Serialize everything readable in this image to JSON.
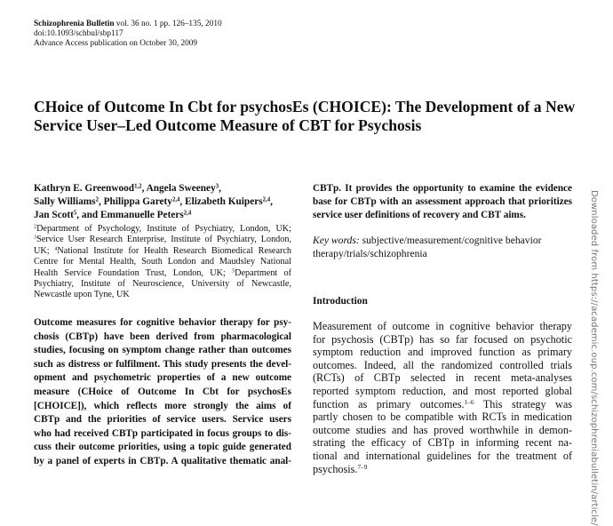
{
  "header": {
    "journal": "Schizophrenia Bulletin",
    "volume_info": " vol. 36 no. 1 pp. 126–135, 2010",
    "doi": "doi:10.1093/schbul/sbp117",
    "advance_access": "Advance Access publication on October 30, 2009"
  },
  "title": {
    "line1": "CHoice of Outcome In Cbt for psychosEs (CHOICE): The Development of a New",
    "line2": "Service User–Led Outcome Measure of CBT for Psychosis"
  },
  "authors": [
    [
      {
        "t": "Kathryn E. Greenwood"
      },
      {
        "s": "1,2"
      },
      {
        "t": ", Angela Sweeney"
      },
      {
        "s": "3"
      },
      {
        "t": ","
      }
    ],
    [
      {
        "t": "Sally Williams"
      },
      {
        "s": "2"
      },
      {
        "t": ", Philippa Garety"
      },
      {
        "s": "2,4"
      },
      {
        "t": ", Elizabeth Kuipers"
      },
      {
        "s": "2,4"
      },
      {
        "t": ","
      }
    ],
    [
      {
        "t": "Jan Scott"
      },
      {
        "s": "5"
      },
      {
        "t": ", and Emmanuelle Peters"
      },
      {
        "s": "2,4"
      }
    ]
  ],
  "affiliations": [
    [
      {
        "s": "2"
      },
      {
        "t": "Department of Psychology, Institute of Psychiatry, London, UK;"
      }
    ],
    [
      {
        "s": "3"
      },
      {
        "t": "Service User Research Enterprise, Institute of Psychiatry, London,"
      }
    ],
    [
      {
        "t": "UK; "
      },
      {
        "s": "4"
      },
      {
        "t": "National Institute for Health Research Biomedical Research"
      }
    ],
    [
      {
        "t": "Centre for Mental Health, South London and Maudsley National"
      }
    ],
    [
      {
        "t": "Health Service Foundation Trust, London, UK; "
      },
      {
        "s": "5"
      },
      {
        "t": "Department of"
      }
    ],
    [
      {
        "t": "Psychiatry, Institute of Neuroscience, University of Newcastle,"
      }
    ],
    [
      {
        "t": "Newcastle upon Tyne, UK"
      }
    ]
  ],
  "abstract_lines": [
    "Outcome measures for cognitive behavior therapy for psy-",
    "chosis (CBTp) have been derived from pharmacological",
    "studies, focusing on symptom change rather than outcomes",
    "such as distress or fulfilment. This study presents the devel-",
    "opment and psychometric properties of a new outcome",
    "measure (CHoice of Outcome In Cbt for psychosEs",
    "[CHOICE]), which reflects more strongly the aims of",
    "CBTp and the priorities of service users. Service users",
    "who had received CBTp participated in focus groups to dis-",
    "cuss their outcome priorities, using a topic guide generated",
    "by a panel of experts in CBTp. A qualitative thematic anal-"
  ],
  "abstract_cont_lines": [
    "CBTp. It provides the opportunity to examine the evidence",
    "base for CBTp with an assessment approach that prioritizes",
    "service user definitions of recovery and CBT aims."
  ],
  "keywords": {
    "label": "Key words:",
    "line1": " subjective/measurement/cognitive behavior",
    "line2": "therapy/trials/schizophrenia"
  },
  "introduction": {
    "heading": "Introduction",
    "lines": [
      [
        {
          "t": "Measurement of outcome in cognitive behavior therapy"
        }
      ],
      [
        {
          "t": "for psychosis (CBTp) has so far focused on psychotic"
        }
      ],
      [
        {
          "t": "symptom reduction and improved function as primary"
        }
      ],
      [
        {
          "t": "outcomes. Indeed, all the randomized controlled trials"
        }
      ],
      [
        {
          "t": "(RCTs) of CBTp selected in recent meta-analyses"
        }
      ],
      [
        {
          "t": "reported symptom reduction, and most reported global"
        }
      ],
      [
        {
          "t": "function as primary outcomes."
        },
        {
          "s": "1–6"
        },
        {
          "t": " This strategy was"
        }
      ],
      [
        {
          "t": "partly chosen to be compatible with RCTs in medication"
        }
      ],
      [
        {
          "t": "outcome studies and has proved worthwhile in demon-"
        }
      ],
      [
        {
          "t": "strating the efficacy of CBTp in informing recent na-"
        }
      ],
      [
        {
          "t": "tional and international guidelines for the treatment of"
        }
      ],
      [
        {
          "t": "psychosis."
        },
        {
          "s": "7–9"
        }
      ]
    ]
  },
  "watermark": "Downloaded from https://academic.oup.com/schizophreniabulletin/article/"
}
